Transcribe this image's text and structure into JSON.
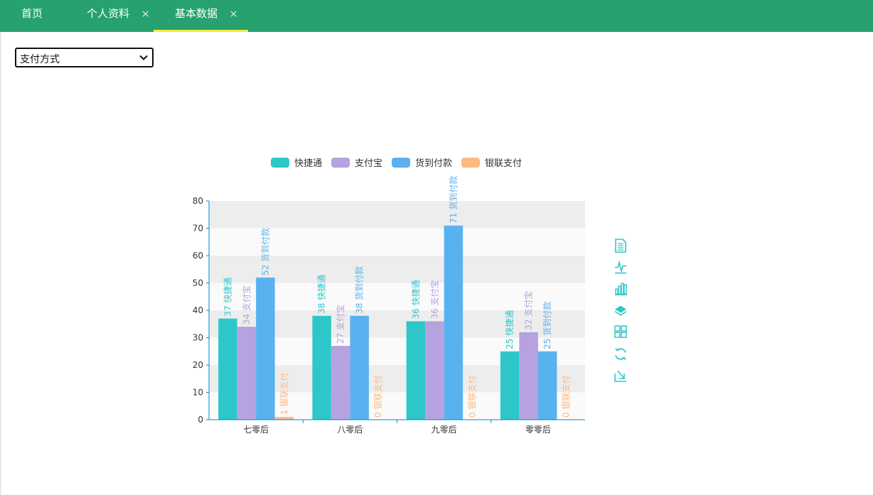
{
  "tabs": [
    {
      "label": "首页",
      "closable": false,
      "active": false
    },
    {
      "label": "个人资料",
      "closable": true,
      "active": false
    },
    {
      "label": "基本数据",
      "closable": true,
      "active": true
    }
  ],
  "close_glyph": "×",
  "filter": {
    "selected": "支付方式"
  },
  "colors": {
    "header": "#27a16f",
    "active_underline": "#f4ef3c",
    "toolbox": "#2ec7c9"
  },
  "toolbox_icons": [
    "data-view-icon",
    "line-chart-icon",
    "bar-chart-icon",
    "stack-icon",
    "tiled-icon",
    "refresh-icon",
    "download-icon"
  ],
  "chart_data": {
    "type": "bar",
    "categories": [
      "七零后",
      "八零后",
      "九零后",
      "零零后"
    ],
    "series": [
      {
        "name": "快捷通",
        "color": "#2ec7c9",
        "values": [
          37,
          38,
          36,
          25
        ]
      },
      {
        "name": "支付宝",
        "color": "#b6a2de",
        "values": [
          34,
          27,
          36,
          32
        ]
      },
      {
        "name": "货到付款",
        "color": "#5ab1ef",
        "values": [
          52,
          38,
          71,
          25
        ]
      },
      {
        "name": "银联支付",
        "color": "#ffb980",
        "values": [
          1,
          0,
          0,
          0
        ]
      }
    ],
    "ylim": [
      0,
      80
    ],
    "yticks": [
      0,
      10,
      20,
      30,
      40,
      50,
      60,
      70,
      80
    ],
    "grid": "alternating-bands",
    "legend_position": "top-center",
    "data_labels": "value-and-series-name-vertical"
  }
}
